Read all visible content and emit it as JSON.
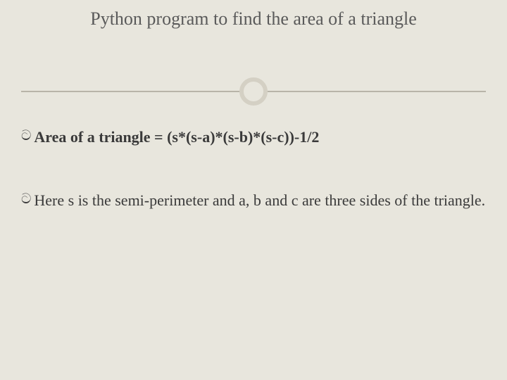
{
  "title": "Python program to find the area of a triangle",
  "bullets": [
    {
      "text": "Area of a triangle = (s*(s-a)*(s-b)*(s-c))-1/2",
      "bold": true
    },
    {
      "text": "Here s is the semi-perimeter and a, b and c are three sides of the triangle.",
      "bold": false
    }
  ],
  "style": {
    "background_color": "#e8e6dd",
    "title_color": "#5a5a5a",
    "text_color": "#3a3a3a",
    "divider_line_color": "#b8b4a8",
    "divider_circle_border": "#d4d0c4",
    "title_fontsize": 26,
    "body_fontsize": 22,
    "font_family": "Georgia"
  }
}
